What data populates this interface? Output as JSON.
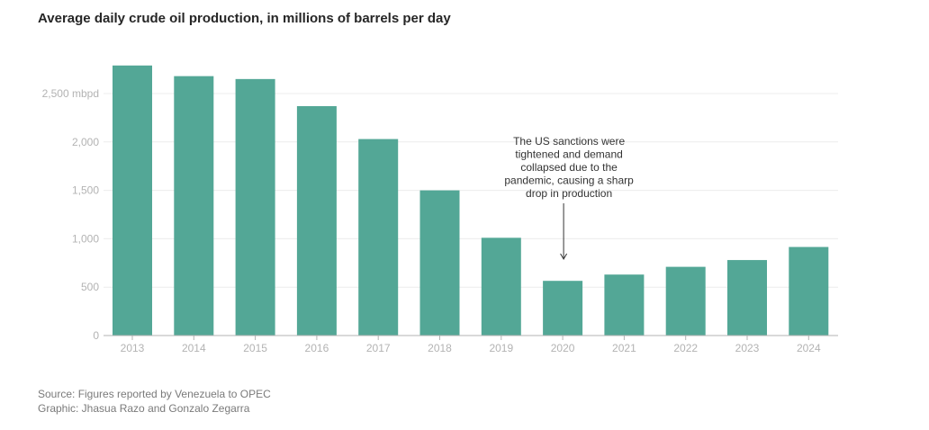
{
  "title": "Average daily crude oil production, in millions of barrels per day",
  "chart_data": {
    "type": "bar",
    "title": "Average daily crude oil production, in millions of barrels per day",
    "categories": [
      "2013",
      "2014",
      "2015",
      "2016",
      "2017",
      "2018",
      "2019",
      "2020",
      "2021",
      "2022",
      "2023",
      "2024"
    ],
    "values": [
      2790,
      2680,
      2650,
      2370,
      2030,
      1500,
      1010,
      565,
      630,
      710,
      780,
      915
    ],
    "ylim": [
      0,
      2800
    ],
    "yticks": [
      0,
      500,
      1000,
      1500,
      2000,
      2500
    ],
    "ytick_labels": [
      "0",
      "500",
      "1,000",
      "1,500",
      "2,000",
      "2,500 mbpd"
    ],
    "xlabel": "",
    "ylabel": "",
    "grid": true,
    "bar_color": "#53a796",
    "annotation": {
      "category": "2020",
      "lines": [
        "The US sanctions were",
        "tightened and demand",
        "collapsed due to the",
        "pandemic, causing a sharp",
        "drop in production"
      ]
    }
  },
  "source": {
    "line1": "Source: Figures reported by Venezuela to OPEC",
    "line2": "Graphic: Jhasua Razo and Gonzalo Zegarra"
  }
}
